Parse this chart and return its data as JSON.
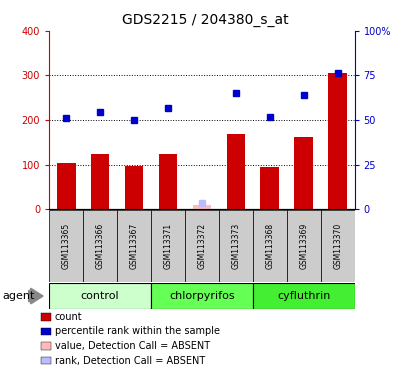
{
  "title": "GDS2215 / 204380_s_at",
  "samples": [
    "GSM113365",
    "GSM113366",
    "GSM113367",
    "GSM113371",
    "GSM113372",
    "GSM113373",
    "GSM113368",
    "GSM113369",
    "GSM113370"
  ],
  "counts": [
    103,
    123,
    97,
    123,
    10,
    168,
    95,
    162,
    305
  ],
  "percentile_ranks": [
    205,
    218,
    200,
    228,
    null,
    260,
    207,
    257,
    305
  ],
  "absent_value": [
    null,
    null,
    null,
    null,
    10,
    null,
    null,
    null,
    null
  ],
  "absent_rank": [
    null,
    null,
    null,
    null,
    15,
    null,
    null,
    null,
    null
  ],
  "groups": [
    {
      "label": "control",
      "indices": [
        0,
        1,
        2
      ],
      "color": "#ccffcc"
    },
    {
      "label": "chlorpyrifos",
      "indices": [
        3,
        4,
        5
      ],
      "color": "#66ff55"
    },
    {
      "label": "cyfluthrin",
      "indices": [
        6,
        7,
        8
      ],
      "color": "#44ee33"
    }
  ],
  "ylim_left": [
    0,
    400
  ],
  "ylim_right": [
    0,
    100
  ],
  "yticks_left": [
    0,
    100,
    200,
    300,
    400
  ],
  "yticks_right": [
    0,
    25,
    50,
    75,
    100
  ],
  "yticklabels_left": [
    "0",
    "100",
    "200",
    "300",
    "400"
  ],
  "yticklabels_right": [
    "0",
    "25",
    "50",
    "75",
    "100%"
  ],
  "bar_color": "#cc0000",
  "dot_color": "#0000cc",
  "absent_val_color": "#ffbbbb",
  "absent_rank_color": "#bbbbff",
  "bar_width": 0.55,
  "grid_yticks": [
    100,
    200,
    300
  ],
  "grid_color": "black",
  "background_plot": "white",
  "sample_box_color": "#cccccc",
  "legend_items": [
    {
      "color": "#cc0000",
      "label": "count"
    },
    {
      "color": "#0000cc",
      "label": "percentile rank within the sample"
    },
    {
      "color": "#ffbbbb",
      "label": "value, Detection Call = ABSENT"
    },
    {
      "color": "#bbbbff",
      "label": "rank, Detection Call = ABSENT"
    }
  ],
  "agent_label": "agent",
  "left_axis_color": "#cc0000",
  "right_axis_color": "#0000cc",
  "title_fontsize": 10,
  "tick_fontsize": 7,
  "sample_fontsize": 5.5,
  "group_fontsize": 8,
  "legend_fontsize": 7
}
